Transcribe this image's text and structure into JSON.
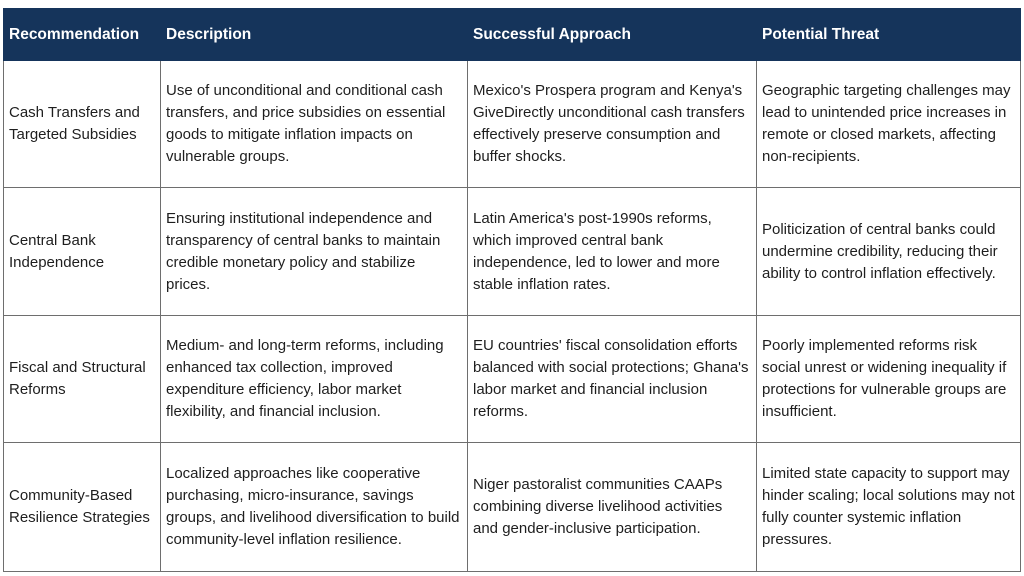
{
  "table": {
    "headers": [
      "Recommendation",
      "Description",
      "Successful Approach",
      "Potential Threat"
    ],
    "rows": [
      {
        "recommendation": "Cash Transfers and Targeted Subsidies",
        "description": "Use of unconditional and conditional cash transfers, and price subsidies on essential goods to mitigate inflation impacts on vulnerable groups.",
        "approach": "Mexico's Prospera program and Kenya's GiveDirectly unconditional cash transfers effectively preserve consumption and buffer shocks.",
        "threat": "Geographic targeting challenges may lead to unintended price increases in remote or closed markets, affecting non-recipients."
      },
      {
        "recommendation": "Central Bank Independence",
        "description": "Ensuring institutional independence and transparency of central banks to maintain credible monetary policy and stabilize prices.",
        "approach": "Latin America's post-1990s reforms, which improved central bank independence, led to lower and more stable inflation rates.",
        "threat": "Politicization of central banks could undermine credibility, reducing their ability to control inflation effectively."
      },
      {
        "recommendation": "Fiscal and Structural Reforms",
        "description": "Medium- and long-term reforms, including enhanced tax collection, improved expenditure efficiency, labor market flexibility, and financial inclusion.",
        "approach": "EU countries' fiscal consolidation efforts balanced with social protections; Ghana's labor market and financial inclusion reforms.",
        "threat": "Poorly implemented reforms risk social unrest or widening inequality if protections for vulnerable groups are insufficient."
      },
      {
        "recommendation": "Community-Based Resilience Strategies",
        "description": "Localized approaches like cooperative purchasing, micro-insurance, savings groups, and livelihood diversification to build community-level inflation resilience.",
        "approach": "Niger pastoralist communities CAAPs combining diverse livelihood activities and gender-inclusive participation.",
        "threat": "Limited state capacity to support may hinder scaling; local solutions may not fully counter systemic inflation pressures."
      }
    ]
  }
}
